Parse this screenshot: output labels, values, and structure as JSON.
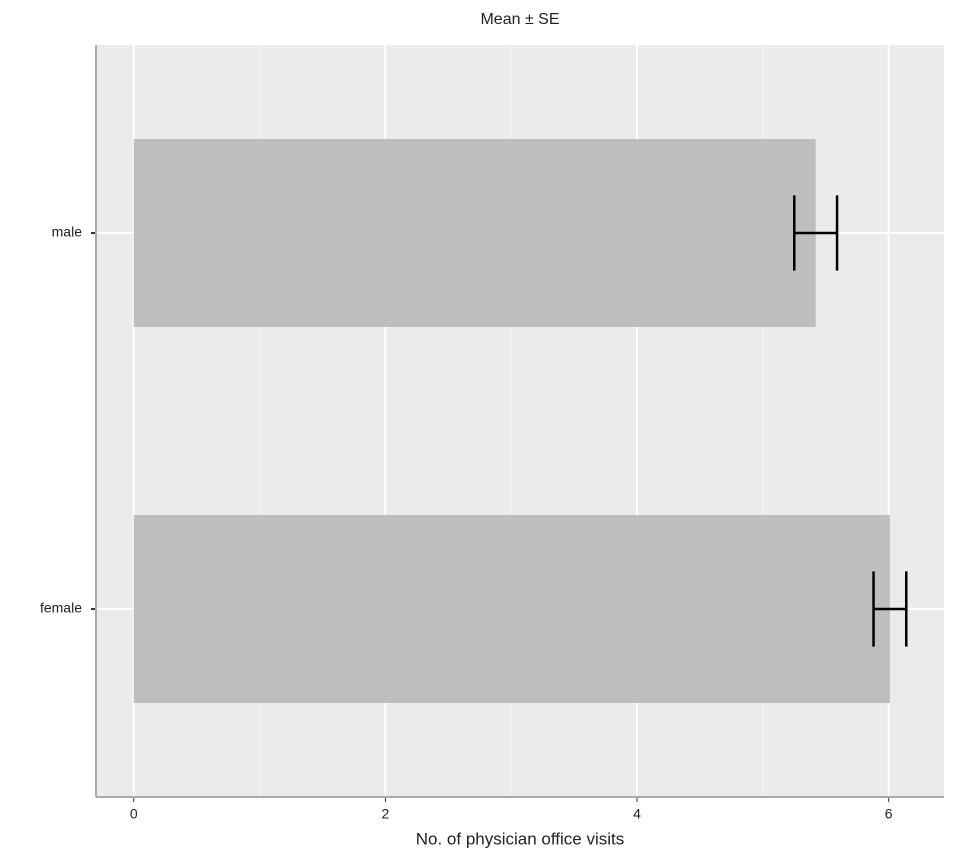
{
  "chart_data": {
    "type": "bar",
    "orientation": "horizontal",
    "title": "Mean ± SE",
    "xlabel": "No. of physician office visits",
    "categories": [
      "female",
      "male"
    ],
    "values": [
      6.01,
      5.42
    ],
    "errors": [
      0.13,
      0.17
    ],
    "color": "#bebebe",
    "xlim": [
      -0.3,
      6.44
    ],
    "xticks": [
      0,
      2,
      4,
      6
    ],
    "grid": true
  }
}
